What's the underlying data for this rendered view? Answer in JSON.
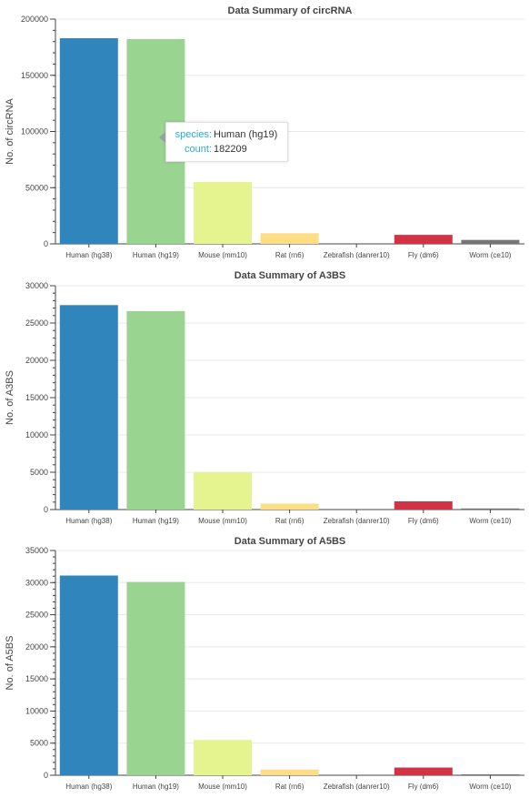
{
  "colors": [
    "#2f85bc",
    "#99d490",
    "#e5f48f",
    "#fedd87",
    "#ffffff",
    "#d13344",
    "#757575"
  ],
  "tooltip": {
    "species_key": "species:",
    "species_value": "Human (hg19)",
    "count_key": "count:",
    "count_value": "182209"
  },
  "chart_data": [
    {
      "type": "bar",
      "title": "Data Summary of circRNA",
      "ylabel": "No. of circRNA",
      "xlabel": "",
      "categories": [
        "Human (hg38)",
        "Human (hg19)",
        "Mouse (mm10)",
        "Rat (rn6)",
        "Zebrafish (danrer10)",
        "Fly (dm6)",
        "Worm (ce10)"
      ],
      "values": [
        183000,
        182209,
        55000,
        9500,
        0,
        8000,
        3500
      ],
      "ylim": [
        0,
        200000
      ],
      "yticks": [
        0,
        50000,
        100000,
        150000,
        200000
      ],
      "grid": true
    },
    {
      "type": "bar",
      "title": "Data Summary of A3BS",
      "ylabel": "No. of A3BS",
      "xlabel": "",
      "categories": [
        "Human (hg38)",
        "Human (hg19)",
        "Mouse (mm10)",
        "Rat (rn6)",
        "Zebrafish (danrer10)",
        "Fly (dm6)",
        "Worm (ce10)"
      ],
      "values": [
        27400,
        26600,
        5000,
        800,
        0,
        1100,
        150
      ],
      "ylim": [
        0,
        30000
      ],
      "yticks": [
        0,
        5000,
        10000,
        15000,
        20000,
        25000,
        30000
      ],
      "grid": true
    },
    {
      "type": "bar",
      "title": "Data Summary of A5BS",
      "ylabel": "No. of A5BS",
      "xlabel": "",
      "categories": [
        "Human (hg38)",
        "Human (hg19)",
        "Mouse (mm10)",
        "Rat (rn6)",
        "Zebrafish (danrer10)",
        "Fly (dm6)",
        "Worm (ce10)"
      ],
      "values": [
        31100,
        30100,
        5500,
        900,
        0,
        1200,
        150
      ],
      "ylim": [
        0,
        35000
      ],
      "yticks": [
        0,
        5000,
        10000,
        15000,
        20000,
        25000,
        30000,
        35000
      ],
      "grid": true
    }
  ]
}
